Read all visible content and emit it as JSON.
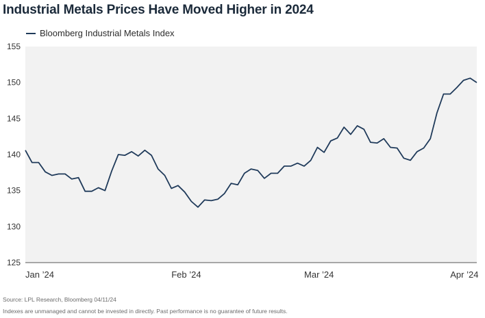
{
  "title": "Industrial Metals Prices Have Moved Higher in 2024",
  "footer": {
    "source": "Source: LPL Research, Bloomberg 04/11/24",
    "disclaimer": "Indexes are unmanaged and cannot be invested in directly. Past performance is no guarantee of future results."
  },
  "colors": {
    "line": "#1f3a5a",
    "plot_background": "#f2f2f2",
    "axis": "#555555"
  },
  "chart_data": {
    "type": "line",
    "title": "Industrial Metals Prices Have Moved Higher in 2024",
    "xlabel": "",
    "ylabel": "",
    "ylim": [
      125,
      155
    ],
    "yticks": [
      125,
      130,
      135,
      140,
      145,
      150,
      155
    ],
    "xticks": [
      {
        "label": "Jan ’24",
        "index": 0
      },
      {
        "label": "Feb ’24",
        "index": 22
      },
      {
        "label": "Mar ’24",
        "index": 42
      },
      {
        "label": "Apr ’24",
        "index": 64
      }
    ],
    "grid": false,
    "legend_position": "top-left",
    "series": [
      {
        "name": "Bloomberg Industrial Metals Index",
        "values": [
          140.6,
          138.9,
          138.9,
          137.6,
          137.1,
          137.3,
          137.3,
          136.6,
          136.8,
          134.9,
          134.9,
          135.4,
          135.0,
          137.7,
          140.0,
          139.9,
          140.4,
          139.8,
          140.6,
          139.9,
          138.0,
          137.1,
          135.3,
          135.7,
          134.8,
          133.5,
          132.7,
          133.7,
          133.6,
          133.8,
          134.6,
          136.0,
          135.8,
          137.4,
          138.0,
          137.8,
          136.7,
          137.4,
          137.4,
          138.4,
          138.4,
          138.8,
          138.4,
          139.2,
          141.0,
          140.3,
          141.9,
          142.3,
          143.8,
          142.8,
          144.0,
          143.5,
          141.7,
          141.6,
          142.2,
          141.0,
          140.9,
          139.5,
          139.2,
          140.4,
          140.9,
          142.2,
          145.8,
          148.4,
          148.4,
          149.3,
          150.3,
          150.6,
          150.0
        ]
      }
    ]
  }
}
